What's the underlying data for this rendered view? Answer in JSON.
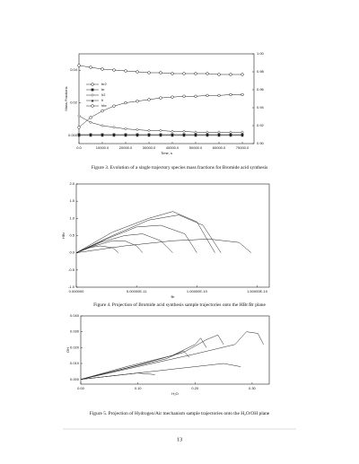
{
  "chart_data": [
    {
      "type": "line",
      "ylabel": "Mass Fractions",
      "xlabel": "Time, s",
      "caption": "Figure 3. Evolution of a single trajectory species mass fractions for Bromide acid synthesis",
      "x": [
        0,
        5000,
        10000,
        15000,
        20000,
        25000,
        30000,
        35000,
        40000,
        45000,
        50000,
        55000,
        60000,
        65000,
        70000
      ],
      "xlim": [
        0,
        75000
      ],
      "xticks": [
        {
          "value": 0,
          "label": "0.0"
        },
        {
          "value": 10000,
          "label": "10000.0"
        },
        {
          "value": 20000,
          "label": "20000.0"
        },
        {
          "value": 30000,
          "label": "30000.0"
        },
        {
          "value": 40000,
          "label": "40000.0"
        },
        {
          "value": 50000,
          "label": "50000.0"
        },
        {
          "value": 60000,
          "label": "60000.0"
        },
        {
          "value": 70000,
          "label": "70000.0"
        }
      ],
      "ylim": [
        -0.005,
        0.05
      ],
      "yticks": [
        {
          "value": 0,
          "label": "0.000"
        },
        0.02,
        0.04
      ],
      "y2lim": [
        0.9,
        1.0
      ],
      "y2ticks": [
        {
          "value": 0.9,
          "label": "0.90"
        },
        0.92,
        0.94,
        0.96,
        0.98,
        {
          "value": 1.0,
          "label": "1.00"
        }
      ],
      "legend": "upper left",
      "series": [
        {
          "name": "br2",
          "color": "#222",
          "marker": "circle-open",
          "axis": "y2",
          "values": [
            0.987,
            0.985,
            0.983,
            0.982,
            0.981,
            0.98,
            0.979,
            0.979,
            0.978,
            0.978,
            0.978,
            0.978,
            0.977,
            0.977,
            0.977
          ]
        },
        {
          "name": "br",
          "color": "#222",
          "marker": "square",
          "values": [
            0.0005,
            0.0005,
            0.0005,
            0.0005,
            0.0005,
            0.0005,
            0.0005,
            0.0005,
            0.0005,
            0.0005,
            0.0005,
            0.0005,
            0.0005,
            0.0005,
            0.0005
          ]
        },
        {
          "name": "h2",
          "color": "#222",
          "marker": "diamond-open",
          "values": [
            0.012,
            0.008,
            0.006,
            0.005,
            0.004,
            0.0035,
            0.003,
            0.003,
            0.0025,
            0.0025,
            0.002,
            0.002,
            0.002,
            0.002,
            0.002
          ]
        },
        {
          "name": "h",
          "color": "#222",
          "marker": "triangle",
          "values": [
            0,
            0,
            0,
            0,
            0,
            0,
            0,
            0,
            0,
            0,
            0,
            0,
            0,
            0,
            0
          ]
        },
        {
          "name": "hbr",
          "color": "#222",
          "marker": "circle-open",
          "values": [
            0.005,
            0.011,
            0.015,
            0.018,
            0.02,
            0.021,
            0.022,
            0.023,
            0.0235,
            0.024,
            0.024,
            0.0245,
            0.0245,
            0.025,
            0.025
          ]
        }
      ]
    },
    {
      "type": "line",
      "ylabel": "HBr",
      "xlabel": "Br",
      "caption": "Figure 4. Projection of Bromide acid synthesis sample trajectories onto the HBr/Br plane",
      "xlim": [
        0,
        1.6e-10
      ],
      "xticks": [
        {
          "value": 0,
          "label": "0.000000"
        },
        {
          "value": 5e-11,
          "label": "5.00000E-11"
        },
        {
          "value": 1e-10,
          "label": "1.00000E-10"
        },
        {
          "value": 1.5e-10,
          "label": "1.50000E-10"
        }
      ],
      "ylim": [
        -1,
        2
      ],
      "yticks": [
        {
          "value": -1,
          "label": "-1.0"
        },
        -0.5,
        {
          "value": 0,
          "label": "0.0"
        },
        0.5,
        {
          "value": 1,
          "label": "1.0"
        },
        1.5,
        {
          "value": 2,
          "label": "2.0"
        }
      ],
      "series": [
        {
          "color": "#222",
          "x": [
            0,
            3e-11,
            6e-11,
            8e-11,
            1e-10,
            1.15e-10
          ],
          "values": [
            0,
            0.6,
            1.0,
            1.2,
            0.9,
            0
          ]
        },
        {
          "color": "#222",
          "x": [
            0,
            3e-11,
            6e-11,
            8.5e-11,
            1.05e-10,
            1.2e-10
          ],
          "values": [
            0,
            0.5,
            0.95,
            1.1,
            0.8,
            0
          ]
        },
        {
          "color": "#222",
          "x": [
            0,
            2.5e-11,
            5e-11,
            7e-11,
            9e-11,
            1e-10
          ],
          "values": [
            0,
            0.4,
            0.75,
            0.8,
            0.55,
            0
          ]
        },
        {
          "color": "#222",
          "x": [
            0,
            2e-11,
            4e-11,
            5.5e-11,
            7e-11,
            8e-11
          ],
          "values": [
            0,
            0.3,
            0.5,
            0.55,
            0.35,
            0
          ]
        },
        {
          "color": "#222",
          "x": [
            0,
            1.5e-11,
            3e-11,
            4e-11,
            5e-11,
            5.5e-11
          ],
          "values": [
            0,
            0.2,
            0.35,
            0.35,
            0.2,
            0
          ]
        },
        {
          "color": "#222",
          "x": [
            0,
            4e-11,
            8e-11,
            1.1e-10,
            1.35e-10,
            1.45e-10
          ],
          "values": [
            0,
            0.2,
            0.35,
            0.4,
            0.3,
            0
          ]
        },
        {
          "color": "#222",
          "x": [
            0,
            1e-11,
            2e-11,
            3e-11,
            3.5e-11
          ],
          "values": [
            0,
            0.15,
            0.2,
            0.15,
            0
          ]
        }
      ]
    },
    {
      "type": "line",
      "ylabel": "OH",
      "xlabel": "H₂O",
      "caption": "Figure 5. Projection of Hydrogen/Air mechanism sample trajectories onto the H₂O/OH plane",
      "xlim": [
        0,
        0.33
      ],
      "xticks": [
        {
          "value": 0,
          "label": "0.00"
        },
        {
          "value": 0.1,
          "label": "0.10"
        },
        {
          "value": 0.2,
          "label": "0.20"
        },
        {
          "value": 0.3,
          "label": "0.30"
        }
      ],
      "ylim": [
        -0.003,
        0.04
      ],
      "yticks": [
        {
          "value": 0,
          "label": "0.000"
        },
        {
          "value": 0.01,
          "label": "0.010"
        },
        {
          "value": 0.02,
          "label": "0.020"
        },
        {
          "value": 0.03,
          "label": "0.030"
        },
        {
          "value": 0.04,
          "label": "0.040"
        }
      ],
      "series": [
        {
          "color": "#222",
          "x": [
            0,
            0.1,
            0.2,
            0.27,
            0.29,
            0.31,
            0.32
          ],
          "values": [
            0,
            0.008,
            0.016,
            0.022,
            0.03,
            0.029,
            0.022
          ]
        },
        {
          "color": "#222",
          "x": [
            0,
            0.1,
            0.18,
            0.22,
            0.24,
            0.25
          ],
          "values": [
            0,
            0.009,
            0.017,
            0.025,
            0.028,
            0.022
          ]
        },
        {
          "color": "#222",
          "x": [
            0,
            0.08,
            0.16,
            0.2,
            0.21,
            0.22
          ],
          "values": [
            0,
            0.008,
            0.015,
            0.022,
            0.026,
            0.02
          ]
        },
        {
          "color": "#222",
          "x": [
            0,
            0.08,
            0.15,
            0.18,
            0.19
          ],
          "values": [
            0,
            0.007,
            0.013,
            0.018,
            0.014
          ]
        },
        {
          "color": "#222",
          "x": [
            0,
            0.1,
            0.2,
            0.25,
            0.28
          ],
          "values": [
            0,
            0.004,
            0.008,
            0.01,
            0.008
          ]
        },
        {
          "color": "#222",
          "x": [
            0,
            0.05,
            0.1,
            0.13
          ],
          "values": [
            0,
            0.002,
            0.004,
            0.003
          ]
        }
      ]
    }
  ],
  "page_number": "13"
}
